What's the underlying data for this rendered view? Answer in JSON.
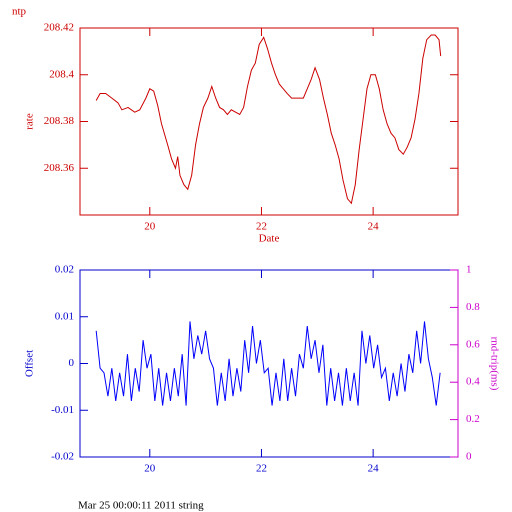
{
  "chart_data": [
    {
      "type": "line",
      "title": "ntp",
      "ylabel": "rate",
      "xlabel": "Date",
      "axis_color": "#cc0000",
      "xlim": [
        18.75,
        25.52
      ],
      "xticks": [
        20,
        22,
        24
      ],
      "ylim": [
        208.34,
        208.42
      ],
      "yticks": [
        208.36,
        208.38,
        208.4,
        208.42
      ],
      "series": [
        {
          "color": "#cc0000",
          "x": [
            19.04,
            19.11,
            19.21,
            19.32,
            19.43,
            19.5,
            19.61,
            19.73,
            19.82,
            19.93,
            20.0,
            20.07,
            20.14,
            20.21,
            20.32,
            20.39,
            20.46,
            20.5,
            20.54,
            20.61,
            20.68,
            20.75,
            20.82,
            20.89,
            20.96,
            21.04,
            21.11,
            21.18,
            21.25,
            21.32,
            21.39,
            21.46,
            21.61,
            21.68,
            21.75,
            21.82,
            21.89,
            21.96,
            22.04,
            22.11,
            22.18,
            22.25,
            22.32,
            22.39,
            22.46,
            22.54,
            22.68,
            22.75,
            22.82,
            22.89,
            22.96,
            23.04,
            23.11,
            23.18,
            23.25,
            23.32,
            23.39,
            23.46,
            23.54,
            23.61,
            23.68,
            23.75,
            23.82,
            23.89,
            23.96,
            24.04,
            24.11,
            24.18,
            24.25,
            24.32,
            24.39,
            24.46,
            24.54,
            24.61,
            24.68,
            24.75,
            24.82,
            24.89,
            24.96,
            25.04,
            25.11,
            25.18,
            25.21
          ],
          "values": [
            208.389,
            208.392,
            208.392,
            208.39,
            208.388,
            208.385,
            208.386,
            208.384,
            208.385,
            208.39,
            208.394,
            208.393,
            208.387,
            208.379,
            208.37,
            208.364,
            208.36,
            208.365,
            208.357,
            208.353,
            208.351,
            208.357,
            208.37,
            208.379,
            208.386,
            208.39,
            208.395,
            208.39,
            208.386,
            208.385,
            208.383,
            208.385,
            208.383,
            208.386,
            208.395,
            208.402,
            208.405,
            208.413,
            208.416,
            208.411,
            208.405,
            208.4,
            208.396,
            208.394,
            208.392,
            208.39,
            208.39,
            208.39,
            208.394,
            208.398,
            208.403,
            208.398,
            208.39,
            208.383,
            208.375,
            208.37,
            208.364,
            208.355,
            208.347,
            208.345,
            208.353,
            208.368,
            208.381,
            208.394,
            208.4,
            208.4,
            208.394,
            208.385,
            208.379,
            208.375,
            208.373,
            208.368,
            208.366,
            208.369,
            208.373,
            208.381,
            208.392,
            208.407,
            208.415,
            208.417,
            208.417,
            208.415,
            208.408
          ]
        }
      ]
    },
    {
      "type": "line",
      "ylabel": "Offset",
      "y2label": "rnd-trip(ms)",
      "axis_color": "#0000cc",
      "y2_color": "#cc00cc",
      "xlim": [
        18.75,
        25.52
      ],
      "xticks": [
        20,
        22,
        24
      ],
      "ylim": [
        -0.02,
        0.02
      ],
      "yticks": [
        -0.02,
        -0.01,
        0,
        0.01,
        0.02
      ],
      "y2lim": [
        0,
        1
      ],
      "y2ticks": [
        0,
        0.2,
        0.4,
        0.6,
        0.8,
        1
      ],
      "series": [
        {
          "color": "#0000ff",
          "x": [
            19.04,
            19.11,
            19.18,
            19.25,
            19.32,
            19.39,
            19.46,
            19.53,
            19.6,
            19.67,
            19.74,
            19.81,
            19.88,
            19.95,
            20.02,
            20.09,
            20.16,
            20.23,
            20.3,
            20.37,
            20.44,
            20.51,
            20.58,
            20.65,
            20.72,
            20.79,
            20.86,
            20.93,
            21.0,
            21.07,
            21.14,
            21.21,
            21.28,
            21.35,
            21.42,
            21.49,
            21.56,
            21.63,
            21.7,
            21.77,
            21.84,
            21.91,
            21.98,
            22.05,
            22.12,
            22.19,
            22.26,
            22.33,
            22.4,
            22.47,
            22.54,
            22.61,
            22.68,
            22.75,
            22.82,
            22.89,
            22.96,
            23.03,
            23.1,
            23.17,
            23.24,
            23.31,
            23.38,
            23.45,
            23.52,
            23.59,
            23.66,
            23.73,
            23.8,
            23.87,
            23.94,
            24.01,
            24.08,
            24.15,
            24.22,
            24.29,
            24.36,
            24.43,
            24.5,
            24.57,
            24.64,
            24.71,
            24.78,
            24.85,
            24.92,
            24.99,
            25.06,
            25.13,
            25.2
          ],
          "values": [
            0.007,
            -0.001,
            -0.002,
            -0.007,
            -0.001,
            -0.008,
            -0.002,
            -0.007,
            0.002,
            -0.008,
            -0.001,
            -0.006,
            0.005,
            -0.001,
            0.002,
            -0.008,
            -0.001,
            -0.009,
            -0.002,
            -0.008,
            -0.001,
            -0.007,
            0.002,
            -0.009,
            0.009,
            0.001,
            0.006,
            0.002,
            0.007,
            0.001,
            -0.001,
            -0.009,
            -0.002,
            -0.008,
            0.001,
            -0.007,
            -0.001,
            -0.006,
            0.005,
            -0.002,
            0.008,
            0.0,
            0.005,
            -0.002,
            -0.001,
            -0.009,
            -0.002,
            -0.008,
            0.001,
            -0.008,
            -0.001,
            -0.007,
            0.002,
            -0.001,
            0.008,
            0.001,
            0.005,
            -0.002,
            0.004,
            -0.009,
            -0.001,
            -0.008,
            -0.002,
            -0.009,
            -0.001,
            -0.008,
            -0.002,
            -0.009,
            0.007,
            0.0,
            0.006,
            -0.001,
            0.004,
            -0.003,
            -0.001,
            -0.008,
            -0.002,
            -0.007,
            0.0,
            -0.006,
            0.002,
            -0.002,
            0.007,
            0.0,
            0.009,
            0.001,
            -0.003,
            -0.009,
            -0.002
          ]
        }
      ]
    }
  ],
  "footer": "Mar 25 00:00:11 2011 string"
}
